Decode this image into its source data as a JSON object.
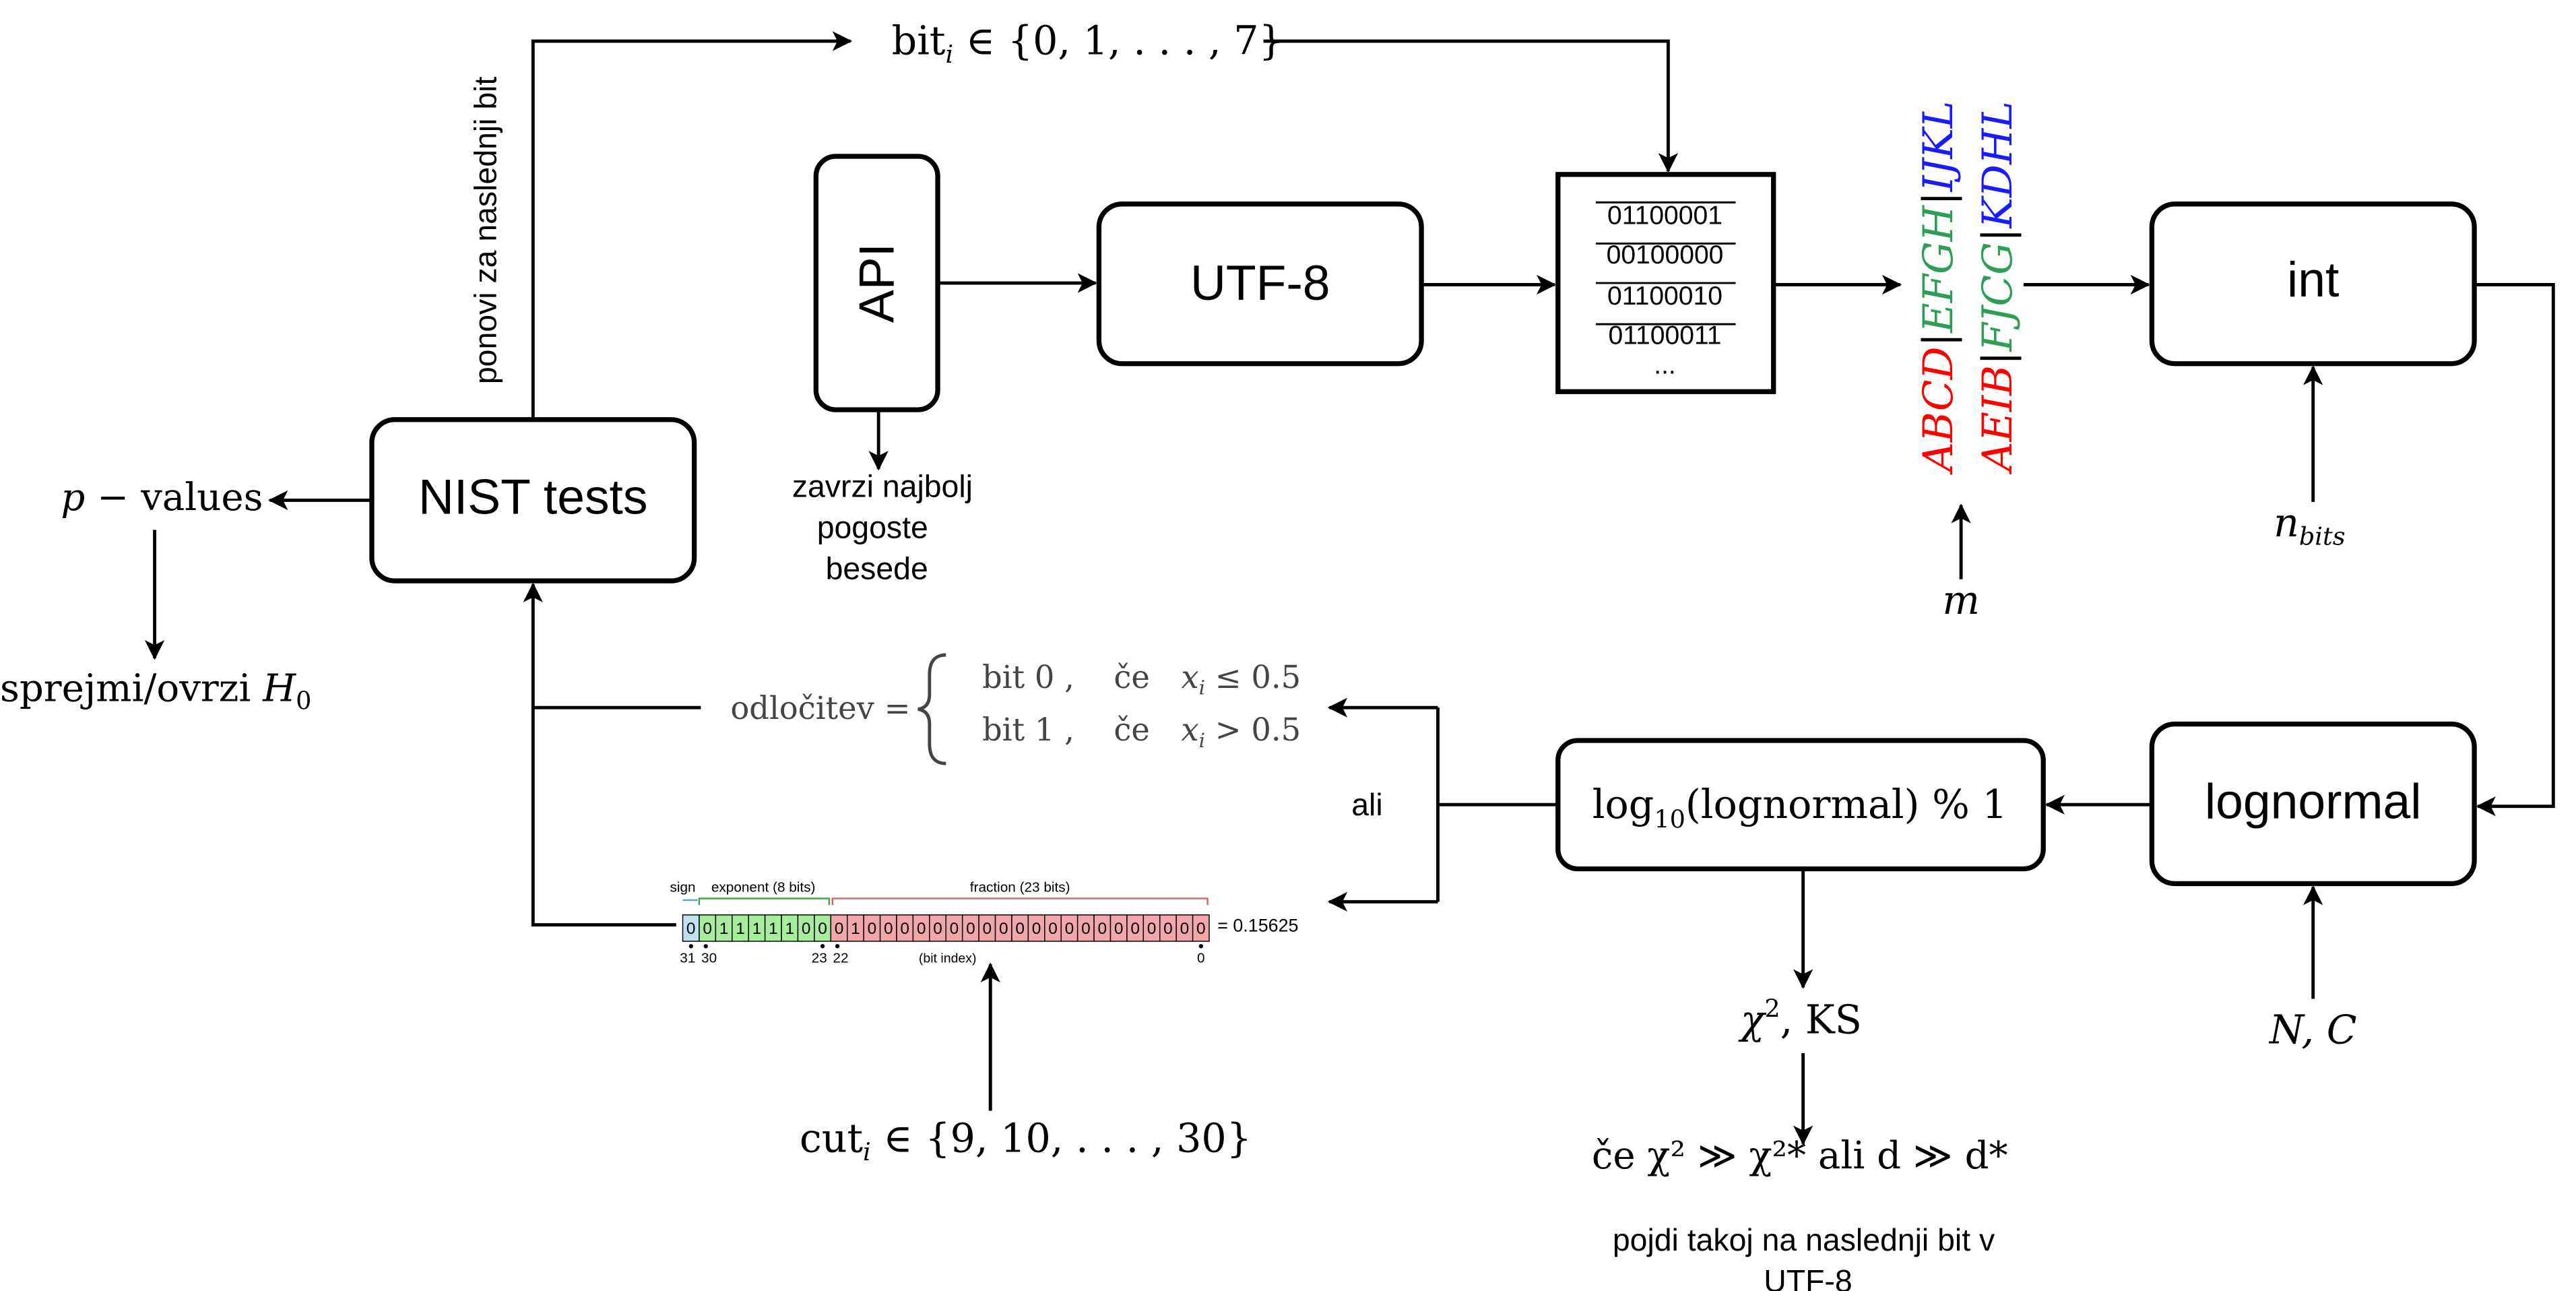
{
  "boxes": {
    "api": "API",
    "utf8": "UTF-8",
    "int": "int",
    "nist": "NIST tests",
    "lognormal": "lognormal",
    "log10_pre": "log",
    "log10_sub": "10",
    "log10_post": "(lognormal) % 1"
  },
  "bitstream": {
    "rows": [
      "01100001",
      "00100000",
      "01100010",
      "01100011"
    ],
    "ellipsis": "..."
  },
  "labels": {
    "bit_i_pre": "bit",
    "bit_i_sub": "i",
    "bit_i_post": " ∈ {0, 1, . . . , 7}",
    "ponovi": "ponovi za naslednji bit",
    "pvalues_p": "p",
    "pvalues_rest": " − values",
    "sprejmi_pre": "sprejmi/ovrzi ",
    "sprejmi_H": "H",
    "sprejmi_sub": "0",
    "zavrzi_1": "zavrzi najbolj",
    "zavrzi_2": "pogoste",
    "zavrzi_3": "besede",
    "m": "m",
    "nbits_n": "n",
    "nbits_sub": "bits",
    "NC": "N, C",
    "ali": "ali",
    "chi_ks_pre": "χ",
    "chi_ks_sup": "2",
    "chi_ks_post": ", KS",
    "ce_chi": "če χ² ≫ χ²* ali d ≫ d*",
    "pojdi_1": "pojdi takoj na naslednji bit v",
    "pojdi_2": "UTF-8",
    "cut_pre": "cut",
    "cut_sub": "i",
    "cut_post": " ∈ {9, 10, . . . , 30}"
  },
  "rotated_groups": {
    "group1": [
      {
        "text": "ABCD",
        "color": "#ff0000"
      },
      {
        "text": "|",
        "color": "#000000"
      },
      {
        "text": "EFGH",
        "color": "#2e9e57"
      },
      {
        "text": "|",
        "color": "#000000"
      },
      {
        "text": "IJKL",
        "color": "#1a1aff"
      }
    ],
    "group2": [
      {
        "text": "AEIB",
        "color": "#ff0000"
      },
      {
        "text": "|",
        "color": "#000000"
      },
      {
        "text": "FJCG",
        "color": "#2e9e57"
      },
      {
        "text": "|",
        "color": "#000000"
      },
      {
        "text": "KDHL",
        "color": "#1a1aff"
      }
    ]
  },
  "decision": {
    "lhs": "odločitev =",
    "row1_bit": "bit 0 ,",
    "row1_ce": "če",
    "row1_cond": "x",
    "row1_sub": "i",
    "row1_rel": " ≤ 0.5",
    "row2_bit": "bit 1 ,",
    "row2_ce": "če",
    "row2_cond": "x",
    "row2_sub": "i",
    "row2_rel": " > 0.5"
  },
  "float_diagram": {
    "sign_label": "sign",
    "exponent_label": "exponent (8 bits)",
    "fraction_label": "fraction (23 bits)",
    "bits": [
      "0",
      "0",
      "1",
      "1",
      "1",
      "1",
      "1",
      "0",
      "0",
      "0",
      "1",
      "0",
      "0",
      "0",
      "0",
      "0",
      "0",
      "0",
      "0",
      "0",
      "0",
      "0",
      "0",
      "0",
      "0",
      "0",
      "0",
      "0",
      "0",
      "0",
      "0",
      "0"
    ],
    "result": "= 0.15625",
    "idx_31": "31",
    "idx_30": "30",
    "idx_23": "23",
    "idx_22": "22",
    "idx_0": "0",
    "bit_index": "(bit index)",
    "colors": {
      "sign": "#bfe3ee",
      "exponent": "#a6ee9c",
      "fraction": "#f1a7a7"
    }
  }
}
